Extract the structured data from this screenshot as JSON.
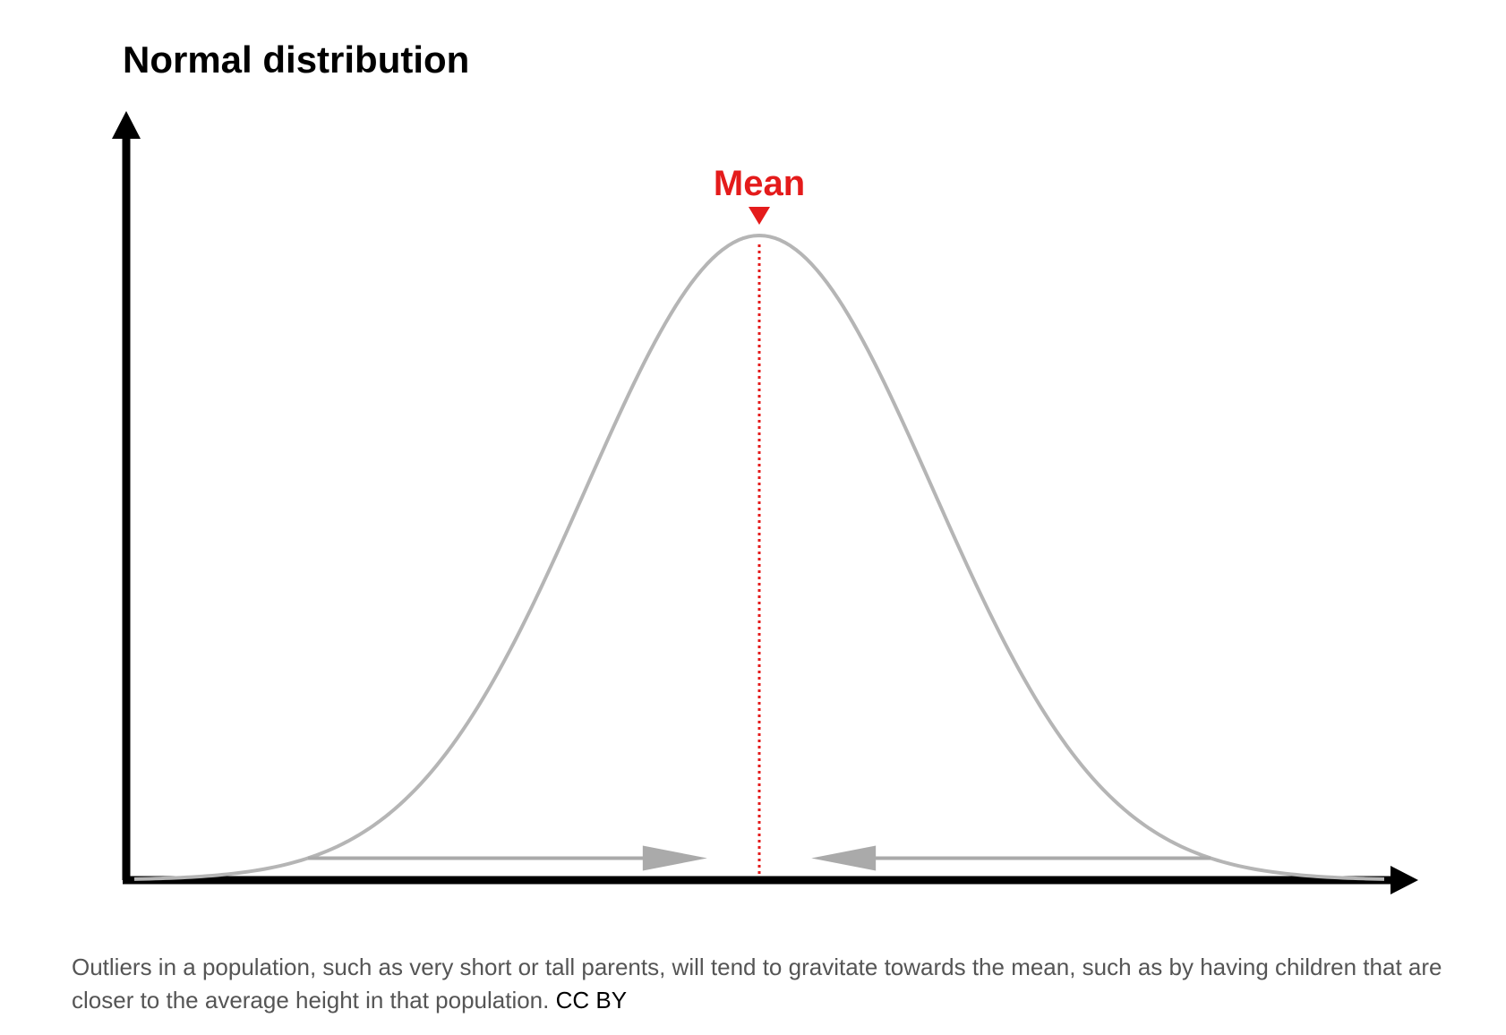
{
  "chart_data": {
    "type": "line",
    "title": "Normal distribution",
    "xlabel": "",
    "ylabel": "",
    "series": [
      {
        "name": "",
        "kind": "normal-density",
        "mean": 0,
        "std_dev": 1,
        "x_range": [
          -3.6,
          3.6
        ],
        "values": [
          {
            "x": -3.6,
            "y": 0.0006
          },
          {
            "x": -3.0,
            "y": 0.0044
          },
          {
            "x": -2.0,
            "y": 0.054
          },
          {
            "x": -1.0,
            "y": 0.242
          },
          {
            "x": 0.0,
            "y": 0.399
          },
          {
            "x": 1.0,
            "y": 0.242
          },
          {
            "x": 2.0,
            "y": 0.054
          },
          {
            "x": 3.0,
            "y": 0.0044
          },
          {
            "x": 3.6,
            "y": 0.0006
          }
        ]
      }
    ],
    "annotations": [
      {
        "type": "marker",
        "label": "Mean",
        "x": 0
      }
    ],
    "arrows": [
      {
        "direction": "right",
        "from_x": -2.6,
        "to_x": -0.3
      },
      {
        "direction": "left",
        "from_x": 2.6,
        "to_x": 0.3
      }
    ],
    "ticks_shown": false,
    "grid": false,
    "legend": false
  },
  "caption": {
    "text": "Outliers in a population, such as very short or tall parents, will tend to gravitate towards the mean, such as by having children that are closer to the average height in that population.",
    "credit": "CC BY"
  },
  "colors": {
    "axis": "#000000",
    "curve": "#b5b5b5",
    "arrow": "#aaaaaa",
    "mean": "#e41b1b",
    "caption_text": "#555555"
  }
}
